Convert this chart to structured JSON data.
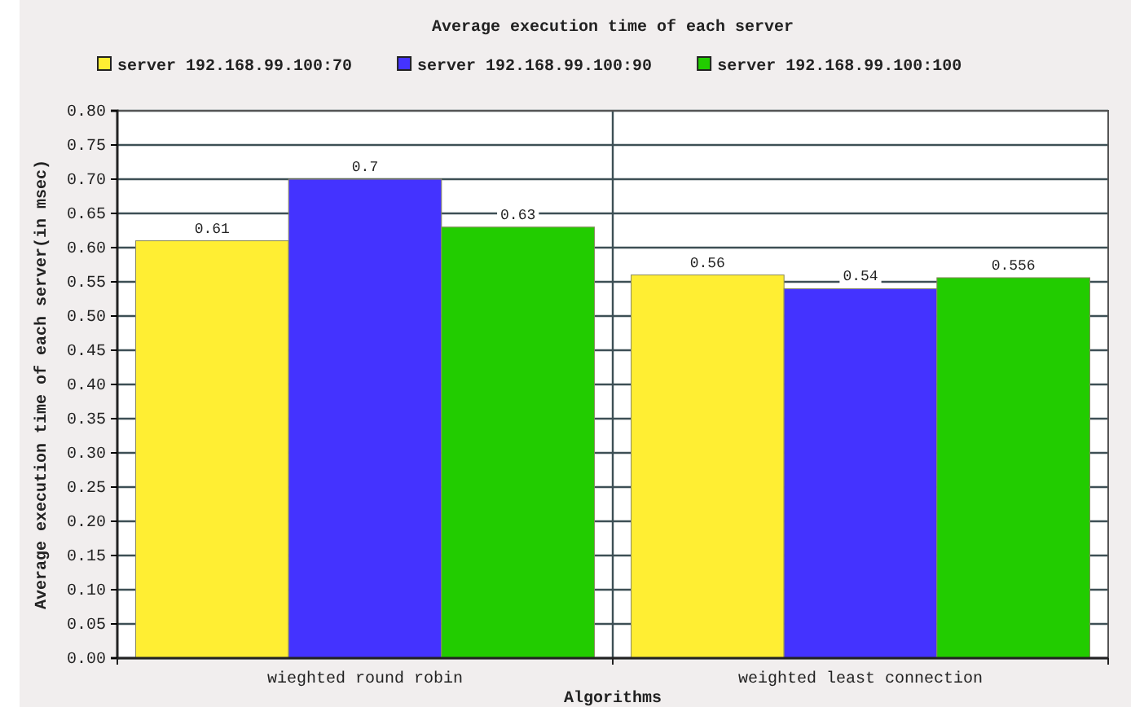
{
  "chart_data": {
    "type": "bar",
    "title": "Average execution time of each server",
    "xlabel": "Algorithms",
    "ylabel": "Average execution time of each server(in msec)",
    "categories": [
      "wieghted round robin",
      "weighted least connection"
    ],
    "series": [
      {
        "name": "server 192.168.99.100:70",
        "color": "#ffee33",
        "values": [
          0.61,
          0.56
        ]
      },
      {
        "name": "server 192.168.99.100:90",
        "color": "#4433ff",
        "values": [
          0.7,
          0.54
        ]
      },
      {
        "name": "server 192.168.99.100:100",
        "color": "#22cc00",
        "values": [
          0.63,
          0.556
        ]
      }
    ],
    "ylim": [
      0,
      0.8
    ],
    "yticks": [
      {
        "value": 0,
        "label": "0.00"
      },
      {
        "value": 0.05,
        "label": "0.05"
      },
      {
        "value": 0.1,
        "label": "0.10"
      },
      {
        "value": 0.15,
        "label": "0.15"
      },
      {
        "value": 0.2,
        "label": "0.20"
      },
      {
        "value": 0.25,
        "label": "0.25"
      },
      {
        "value": 0.3,
        "label": "0.30"
      },
      {
        "value": 0.35,
        "label": "0.35"
      },
      {
        "value": 0.4,
        "label": "0.40"
      },
      {
        "value": 0.45,
        "label": "0.45"
      },
      {
        "value": 0.5,
        "label": "0.50"
      },
      {
        "value": 0.55,
        "label": "0.55"
      },
      {
        "value": 0.6,
        "label": "0.60"
      },
      {
        "value": 0.65,
        "label": "0.65"
      },
      {
        "value": 0.7,
        "label": "0.70"
      },
      {
        "value": 0.75,
        "label": "0.75"
      },
      {
        "value": 0.8,
        "label": "0.80"
      }
    ],
    "grid": "y",
    "legend": "top",
    "data_labels": true
  }
}
